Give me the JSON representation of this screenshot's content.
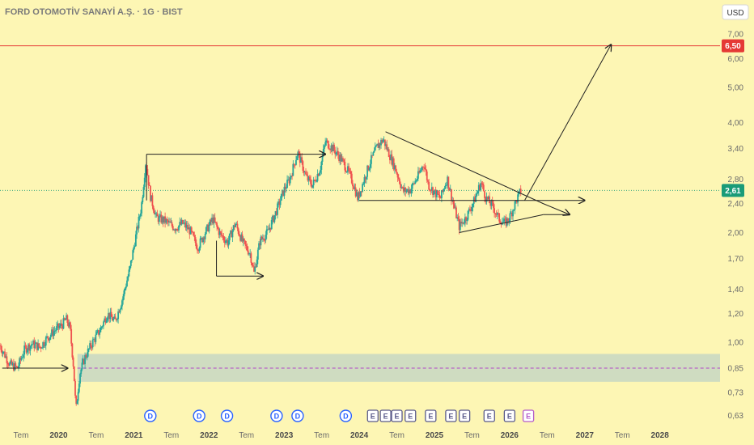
{
  "header": {
    "title": "FORD OTOMOTİV SANAYİ A.Ş. · 1G · BIST",
    "currency_button": "USD"
  },
  "colors": {
    "background": "#fdf6b4",
    "up": "#26a69a",
    "down": "#ef5350",
    "target_line": "#e53935",
    "current_price": "#1a9b78",
    "zone_fill": "#c7d7c3",
    "zone_midline": "#b044c8",
    "drawing": "#222222",
    "dividend_ring": "#2962ff",
    "earnings_ring": "#5a5a8a"
  },
  "chart_data": {
    "type": "candlestick",
    "x_axis": {
      "ticks": [
        "Tem",
        "2020",
        "Tem",
        "2021",
        "Tem",
        "2022",
        "Tem",
        "2023",
        "Tem",
        "2024",
        "Tem",
        "2025",
        "Tem",
        "2026",
        "Tem",
        "2027",
        "Tem",
        "2028"
      ],
      "tick_times": [
        2019.5,
        2020.0,
        2020.5,
        2021.0,
        2021.5,
        2022.0,
        2022.5,
        2023.0,
        2023.5,
        2024.0,
        2024.5,
        2025.0,
        2025.5,
        2026.0,
        2026.5,
        2027.0,
        2027.5,
        2028.0
      ],
      "range": [
        2019.22,
        2028.8
      ]
    },
    "y_axis": {
      "scale": "log",
      "ticks": [
        "7,00",
        "6,00",
        "5,00",
        "4,00",
        "3,40",
        "2,80",
        "2,40",
        "2,00",
        "1,70",
        "1,40",
        "1,20",
        "1,00",
        "0,85",
        "0,73",
        "0,63"
      ],
      "tick_values": [
        7.0,
        6.0,
        5.0,
        4.0,
        3.4,
        2.8,
        2.4,
        2.0,
        1.7,
        1.4,
        1.2,
        1.0,
        0.85,
        0.73,
        0.63
      ],
      "range": [
        0.61,
        7.6
      ]
    },
    "price_path": [
      [
        2019.22,
        0.98
      ],
      [
        2019.35,
        0.87
      ],
      [
        2019.45,
        0.85
      ],
      [
        2019.55,
        0.96
      ],
      [
        2019.65,
        0.99
      ],
      [
        2019.75,
        0.97
      ],
      [
        2019.85,
        1.03
      ],
      [
        2019.95,
        1.08
      ],
      [
        2020.05,
        1.12
      ],
      [
        2020.1,
        1.16
      ],
      [
        2020.15,
        1.1
      ],
      [
        2020.2,
        0.85
      ],
      [
        2020.23,
        0.65
      ],
      [
        2020.28,
        0.82
      ],
      [
        2020.35,
        0.91
      ],
      [
        2020.45,
        1.0
      ],
      [
        2020.55,
        1.08
      ],
      [
        2020.65,
        1.2
      ],
      [
        2020.75,
        1.14
      ],
      [
        2020.85,
        1.32
      ],
      [
        2020.95,
        1.6
      ],
      [
        2021.02,
        1.92
      ],
      [
        2021.1,
        2.35
      ],
      [
        2021.16,
        3.15
      ],
      [
        2021.22,
        2.52
      ],
      [
        2021.3,
        2.2
      ],
      [
        2021.42,
        2.15
      ],
      [
        2021.55,
        2.06
      ],
      [
        2021.65,
        2.12
      ],
      [
        2021.75,
        2.02
      ],
      [
        2021.85,
        1.82
      ],
      [
        2021.95,
        2.0
      ],
      [
        2022.05,
        2.18
      ],
      [
        2022.15,
        1.98
      ],
      [
        2022.25,
        1.88
      ],
      [
        2022.35,
        2.12
      ],
      [
        2022.45,
        1.88
      ],
      [
        2022.55,
        1.75
      ],
      [
        2022.6,
        1.55
      ],
      [
        2022.68,
        1.9
      ],
      [
        2022.78,
        2.0
      ],
      [
        2022.9,
        2.3
      ],
      [
        2023.0,
        2.62
      ],
      [
        2023.08,
        2.82
      ],
      [
        2023.18,
        3.32
      ],
      [
        2023.3,
        2.82
      ],
      [
        2023.38,
        2.7
      ],
      [
        2023.48,
        3.0
      ],
      [
        2023.55,
        3.55
      ],
      [
        2023.65,
        3.4
      ],
      [
        2023.75,
        3.2
      ],
      [
        2023.85,
        2.95
      ],
      [
        2023.92,
        2.72
      ],
      [
        2023.98,
        2.48
      ],
      [
        2024.06,
        2.78
      ],
      [
        2024.14,
        3.1
      ],
      [
        2024.24,
        3.45
      ],
      [
        2024.32,
        3.6
      ],
      [
        2024.38,
        3.35
      ],
      [
        2024.48,
        3.0
      ],
      [
        2024.58,
        2.6
      ],
      [
        2024.68,
        2.62
      ],
      [
        2024.78,
        2.85
      ],
      [
        2024.86,
        3.1
      ],
      [
        2024.92,
        2.7
      ],
      [
        2025.0,
        2.58
      ],
      [
        2025.08,
        2.48
      ],
      [
        2025.17,
        2.82
      ],
      [
        2025.25,
        2.4
      ],
      [
        2025.33,
        2.08
      ],
      [
        2025.42,
        2.2
      ],
      [
        2025.52,
        2.42
      ],
      [
        2025.62,
        2.75
      ],
      [
        2025.68,
        2.5
      ],
      [
        2025.78,
        2.35
      ],
      [
        2025.86,
        2.18
      ],
      [
        2025.94,
        2.12
      ],
      [
        2026.0,
        2.2
      ],
      [
        2026.08,
        2.42
      ],
      [
        2026.15,
        2.61
      ]
    ],
    "target_line": {
      "value": 6.5,
      "label": "6,50"
    },
    "current_price": {
      "value": 2.61,
      "label": "2,61"
    },
    "demand_zone": {
      "low": 0.78,
      "high": 0.93,
      "mid": 0.85
    },
    "drawings": {
      "horizontal_arrows": [
        {
          "from": [
            2019.25,
            0.85
          ],
          "to": [
            2020.12,
            0.85
          ]
        },
        {
          "from": [
            2021.17,
            3.28
          ],
          "to": [
            2023.55,
            3.28
          ]
        },
        {
          "from": [
            2022.1,
            1.52
          ],
          "to": [
            2022.72,
            1.52
          ]
        },
        {
          "from": [
            2024.0,
            2.45
          ],
          "to": [
            2027.0,
            2.45
          ]
        }
      ],
      "triangle": {
        "upper": [
          [
            2024.35,
            3.78
          ],
          [
            2026.45,
            2.4
          ]
        ],
        "lower": [
          [
            2025.33,
            2.0
          ],
          [
            2026.45,
            2.24
          ]
        ],
        "arrow_to": [
          2026.8,
          2.24
        ]
      },
      "breakout_arrow": {
        "from": [
          2026.2,
          2.45
        ],
        "to": [
          2027.35,
          6.55
        ]
      }
    },
    "events": [
      {
        "kind": "dividend",
        "label": "D",
        "t": 2021.22
      },
      {
        "kind": "dividend",
        "label": "D",
        "t": 2021.87
      },
      {
        "kind": "dividend",
        "label": "D",
        "t": 2022.24
      },
      {
        "kind": "dividend",
        "label": "D",
        "t": 2022.9
      },
      {
        "kind": "dividend",
        "label": "D",
        "t": 2023.18
      },
      {
        "kind": "dividend",
        "label": "D",
        "t": 2023.82
      },
      {
        "kind": "earnings",
        "label": "E",
        "t": 2024.18
      },
      {
        "kind": "earnings",
        "label": "E",
        "t": 2024.35
      },
      {
        "kind": "earnings",
        "label": "E",
        "t": 2024.5
      },
      {
        "kind": "earnings",
        "label": "E",
        "t": 2024.68
      },
      {
        "kind": "earnings",
        "label": "E",
        "t": 2024.95
      },
      {
        "kind": "earnings",
        "label": "E",
        "t": 2025.22
      },
      {
        "kind": "earnings",
        "label": "E",
        "t": 2025.4
      },
      {
        "kind": "earnings",
        "label": "E",
        "t": 2025.73
      },
      {
        "kind": "earnings",
        "label": "E",
        "t": 2026.0
      },
      {
        "kind": "earnings",
        "label": "E",
        "t": 2026.25,
        "upcoming": true
      }
    ]
  }
}
